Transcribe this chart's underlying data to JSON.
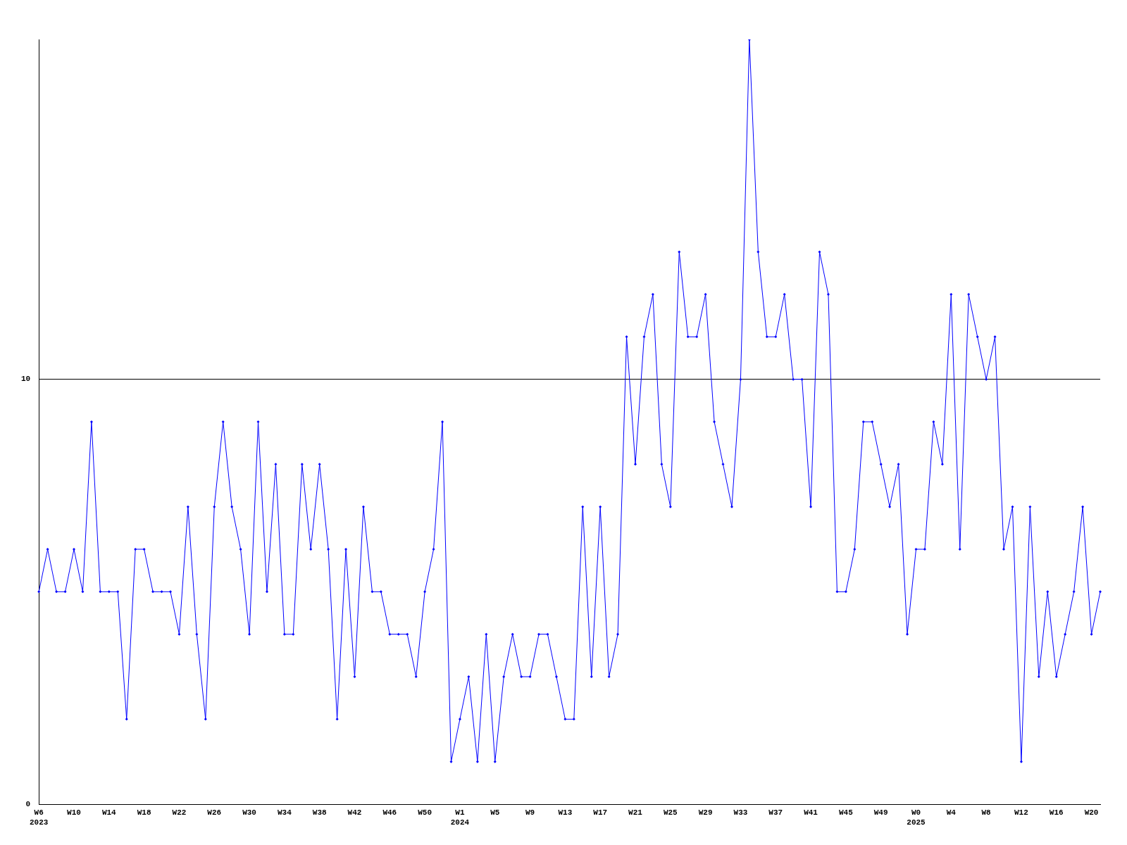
{
  "chart_data": {
    "type": "line",
    "categories": [
      "W6\n2023",
      null,
      null,
      null,
      "W10",
      null,
      null,
      null,
      "W14",
      null,
      null,
      null,
      "W18",
      null,
      null,
      null,
      "W22",
      null,
      null,
      null,
      "W26",
      null,
      null,
      null,
      "W30",
      null,
      null,
      null,
      "W34",
      null,
      null,
      null,
      "W38",
      null,
      null,
      null,
      "W42",
      null,
      null,
      null,
      "W46",
      null,
      null,
      null,
      "W50",
      null,
      null,
      null,
      "W1\n2024",
      null,
      null,
      null,
      "W5",
      null,
      null,
      null,
      "W9",
      null,
      null,
      null,
      "W13",
      null,
      null,
      null,
      "W17",
      null,
      null,
      null,
      "W21",
      null,
      null,
      null,
      "W25",
      null,
      null,
      null,
      "W29",
      null,
      null,
      null,
      "W33",
      null,
      null,
      null,
      "W37",
      null,
      null,
      null,
      "W41",
      null,
      null,
      null,
      "W45",
      null,
      null,
      null,
      "W49",
      null,
      null,
      null,
      "W0\n2025",
      null,
      null,
      null,
      "W4",
      null,
      null,
      null,
      "W8",
      null,
      null,
      null,
      "W12",
      null,
      null,
      null,
      "W16",
      null,
      null,
      null,
      "W20",
      null
    ],
    "series": [
      {
        "color": "#0000ff",
        "values": [
          5,
          6,
          5,
          5,
          6,
          5,
          9,
          5,
          5,
          5,
          2,
          6,
          6,
          5,
          5,
          5,
          4,
          7,
          4,
          2,
          7,
          9,
          7,
          6,
          4,
          9,
          5,
          8,
          4,
          4,
          8,
          6,
          8,
          6,
          2,
          6,
          3,
          7,
          5,
          5,
          4,
          4,
          4,
          3,
          5,
          6,
          9,
          1,
          2,
          3,
          1,
          4,
          1,
          3,
          4,
          3,
          3,
          4,
          4,
          3,
          2,
          2,
          7,
          3,
          7,
          3,
          4,
          11,
          8,
          11,
          12,
          8,
          7,
          13,
          11,
          11,
          12,
          9,
          8,
          7,
          10,
          18,
          13,
          11,
          11,
          12,
          10,
          10,
          7,
          13,
          12,
          5,
          5,
          6,
          9,
          9,
          8,
          7,
          8,
          4,
          6,
          6,
          9,
          8,
          12,
          6,
          12,
          11,
          10,
          11,
          6,
          7,
          1,
          7,
          3,
          5,
          3,
          4,
          5,
          7,
          4,
          5
        ]
      }
    ],
    "ylim": [
      0,
      18
    ],
    "yticks": [
      0,
      10
    ],
    "grid": "y",
    "marker": "diamond",
    "line_style": "solid",
    "legend": false
  }
}
